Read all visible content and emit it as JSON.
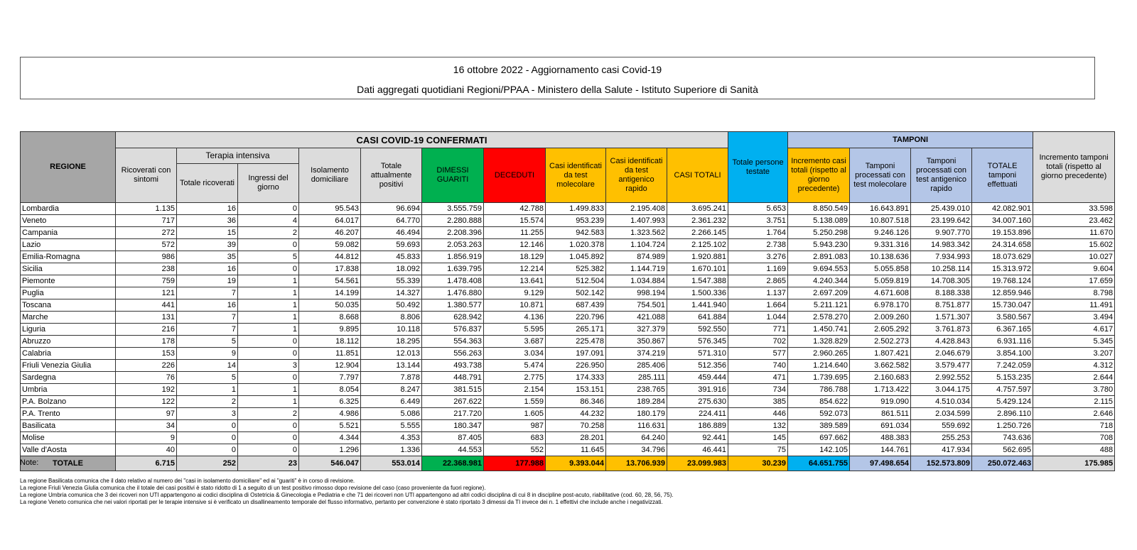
{
  "title": "16 ottobre 2022 - Aggiornamento casi Covid-19",
  "subtitle": "Dati aggregati quotidiani Regioni/PPAA - Ministero della Salute - Istituto Superiore di Sanità",
  "headers": {
    "regione": "REGIONE",
    "casi_group": "CASI COVID-19 CONFERMATI",
    "tamponi_group": "TAMPONI",
    "terapia_intensiva": "Terapia intensiva",
    "ricoverati": "Ricoverati con sintomi",
    "totale_ricoverati": "Totale ricoverati",
    "ingressi": "Ingressi del giorno",
    "isolamento": "Isolamento domiciliare",
    "totale_positivi": "Totale attualmente positivi",
    "dimessi": "DIMESSI GUARITI",
    "deceduti": "DECEDUTI",
    "molecolare": "Casi identificati da test molecolare",
    "antigenico": "Casi identificati da test antigenico rapido",
    "casi_totali": "CASI TOTALI",
    "incremento_casi": "Incremento casi totali (rispetto al giorno precedente)",
    "persone_testate": "Totale persone testate",
    "tamponi_molecolare": "Tamponi processati con test molecolare",
    "tamponi_antigenico": "Tamponi processati con test antigenico rapido",
    "tamponi_totale": "TOTALE tamponi effettuati",
    "incremento_tamponi": "Incremento tamponi totali (rispetto al giorno precedente)"
  },
  "rows": [
    [
      "Lombardia",
      "1.135",
      "16",
      "0",
      "95.543",
      "96.694",
      "3.555.759",
      "42.788",
      "1.499.833",
      "2.195.408",
      "3.695.241",
      "5.653",
      "8.850.549",
      "16.643.891",
      "25.439.010",
      "42.082.901",
      "33.598"
    ],
    [
      "Veneto",
      "717",
      "36",
      "4",
      "64.017",
      "64.770",
      "2.280.888",
      "15.574",
      "953.239",
      "1.407.993",
      "2.361.232",
      "3.751",
      "5.138.089",
      "10.807.518",
      "23.199.642",
      "34.007.160",
      "23.462"
    ],
    [
      "Campania",
      "272",
      "15",
      "2",
      "46.207",
      "46.494",
      "2.208.396",
      "11.255",
      "942.583",
      "1.323.562",
      "2.266.145",
      "1.764",
      "5.250.298",
      "9.246.126",
      "9.907.770",
      "19.153.896",
      "11.670"
    ],
    [
      "Lazio",
      "572",
      "39",
      "0",
      "59.082",
      "59.693",
      "2.053.263",
      "12.146",
      "1.020.378",
      "1.104.724",
      "2.125.102",
      "2.738",
      "5.943.230",
      "9.331.316",
      "14.983.342",
      "24.314.658",
      "15.602"
    ],
    [
      "Emilia-Romagna",
      "986",
      "35",
      "5",
      "44.812",
      "45.833",
      "1.856.919",
      "18.129",
      "1.045.892",
      "874.989",
      "1.920.881",
      "3.276",
      "2.891.083",
      "10.138.636",
      "7.934.993",
      "18.073.629",
      "10.027"
    ],
    [
      "Sicilia",
      "238",
      "16",
      "0",
      "17.838",
      "18.092",
      "1.639.795",
      "12.214",
      "525.382",
      "1.144.719",
      "1.670.101",
      "1.169",
      "9.694.553",
      "5.055.858",
      "10.258.114",
      "15.313.972",
      "9.604"
    ],
    [
      "Piemonte",
      "759",
      "19",
      "1",
      "54.561",
      "55.339",
      "1.478.408",
      "13.641",
      "512.504",
      "1.034.884",
      "1.547.388",
      "2.865",
      "4.240.344",
      "5.059.819",
      "14.708.305",
      "19.768.124",
      "17.659"
    ],
    [
      "Puglia",
      "121",
      "7",
      "1",
      "14.199",
      "14.327",
      "1.476.880",
      "9.129",
      "502.142",
      "998.194",
      "1.500.336",
      "1.137",
      "2.697.209",
      "4.671.608",
      "8.188.338",
      "12.859.946",
      "8.798"
    ],
    [
      "Toscana",
      "441",
      "16",
      "1",
      "50.035",
      "50.492",
      "1.380.577",
      "10.871",
      "687.439",
      "754.501",
      "1.441.940",
      "1.664",
      "5.211.121",
      "6.978.170",
      "8.751.877",
      "15.730.047",
      "11.491"
    ],
    [
      "Marche",
      "131",
      "7",
      "1",
      "8.668",
      "8.806",
      "628.942",
      "4.136",
      "220.796",
      "421.088",
      "641.884",
      "1.044",
      "2.578.270",
      "2.009.260",
      "1.571.307",
      "3.580.567",
      "3.494"
    ],
    [
      "Liguria",
      "216",
      "7",
      "1",
      "9.895",
      "10.118",
      "576.837",
      "5.595",
      "265.171",
      "327.379",
      "592.550",
      "771",
      "1.450.741",
      "2.605.292",
      "3.761.873",
      "6.367.165",
      "4.617"
    ],
    [
      "Abruzzo",
      "178",
      "5",
      "0",
      "18.112",
      "18.295",
      "554.363",
      "3.687",
      "225.478",
      "350.867",
      "576.345",
      "702",
      "1.328.829",
      "2.502.273",
      "4.428.843",
      "6.931.116",
      "5.345"
    ],
    [
      "Calabria",
      "153",
      "9",
      "0",
      "11.851",
      "12.013",
      "556.263",
      "3.034",
      "197.091",
      "374.219",
      "571.310",
      "577",
      "2.960.265",
      "1.807.421",
      "2.046.679",
      "3.854.100",
      "3.207"
    ],
    [
      "Friuli Venezia Giulia",
      "226",
      "14",
      "3",
      "12.904",
      "13.144",
      "493.738",
      "5.474",
      "226.950",
      "285.406",
      "512.356",
      "740",
      "1.214.640",
      "3.662.582",
      "3.579.477",
      "7.242.059",
      "4.312"
    ],
    [
      "Sardegna",
      "76",
      "5",
      "0",
      "7.797",
      "7.878",
      "448.791",
      "2.775",
      "174.333",
      "285.111",
      "459.444",
      "471",
      "1.739.695",
      "2.160.683",
      "2.992.552",
      "5.153.235",
      "2.644"
    ],
    [
      "Umbria",
      "192",
      "1",
      "1",
      "8.054",
      "8.247",
      "381.515",
      "2.154",
      "153.151",
      "238.765",
      "391.916",
      "734",
      "786.788",
      "1.713.422",
      "3.044.175",
      "4.757.597",
      "3.780"
    ],
    [
      "P.A. Bolzano",
      "122",
      "2",
      "1",
      "6.325",
      "6.449",
      "267.622",
      "1.559",
      "86.346",
      "189.284",
      "275.630",
      "385",
      "854.622",
      "919.090",
      "4.510.034",
      "5.429.124",
      "2.115"
    ],
    [
      "P.A. Trento",
      "97",
      "3",
      "2",
      "4.986",
      "5.086",
      "217.720",
      "1.605",
      "44.232",
      "180.179",
      "224.411",
      "446",
      "592.073",
      "861.511",
      "2.034.599",
      "2.896.110",
      "2.646"
    ],
    [
      "Basilicata",
      "34",
      "0",
      "0",
      "5.521",
      "5.555",
      "180.347",
      "987",
      "70.258",
      "116.631",
      "186.889",
      "132",
      "389.589",
      "691.034",
      "559.692",
      "1.250.726",
      "718"
    ],
    [
      "Molise",
      "9",
      "0",
      "0",
      "4.344",
      "4.353",
      "87.405",
      "683",
      "28.201",
      "64.240",
      "92.441",
      "145",
      "697.662",
      "488.383",
      "255.253",
      "743.636",
      "708"
    ],
    [
      "Valle d'Aosta",
      "40",
      "0",
      "0",
      "1.296",
      "1.336",
      "44.553",
      "552",
      "11.645",
      "34.796",
      "46.441",
      "75",
      "142.105",
      "144.761",
      "417.934",
      "562.695",
      "488"
    ]
  ],
  "totals": [
    "TOTALE",
    "6.715",
    "252",
    "23",
    "546.047",
    "553.014",
    "22.368.981",
    "177.988",
    "9.393.044",
    "13.706.939",
    "23.099.983",
    "30.239",
    "64.651.755",
    "97.498.654",
    "152.573.809",
    "250.072.463",
    "175.985"
  ],
  "notes": {
    "heading": "Note:",
    "items": [
      "La regione Basilicata comunica che il dato relativo al numero dei \"casi in isolamento domiciliare\" ed ai \"guariti\" è in corso di revisione.",
      "La regione Friuli Venezia Giulia comunica che il totale dei casi positivi è stato ridotto di 1 a seguito di un test positivo rimosso dopo revisione del caso (caso proveniente da fuori regione).",
      "La regione Umbria comunica che 3 dei ricoveri non UTI appartengono ai codici disciplina di Ostetricia & Ginecologia e Pediatria e che 71 dei ricoveri non UTI appartengono ad altri codici disciplina di cui 8 in discipline post-acuto, riabilitative (cod. 60, 28, 56, 75).",
      "La regione Veneto comunica che nei valori riportati per le terapie intensive si è verificato un disallineamento temporale del flusso informativo, pertanto per convenzione è stato riportato 3 dimessi da TI  invece dei n. 1 effettivi che include anche i negativizzati."
    ]
  },
  "colors": {
    "dimessi": "#00b050",
    "deceduti": "#ff0000",
    "casi": "#ffc000",
    "testate": "#00b0f0",
    "tamponi": "#b4c6e7",
    "regione": "#a6a6a6"
  }
}
